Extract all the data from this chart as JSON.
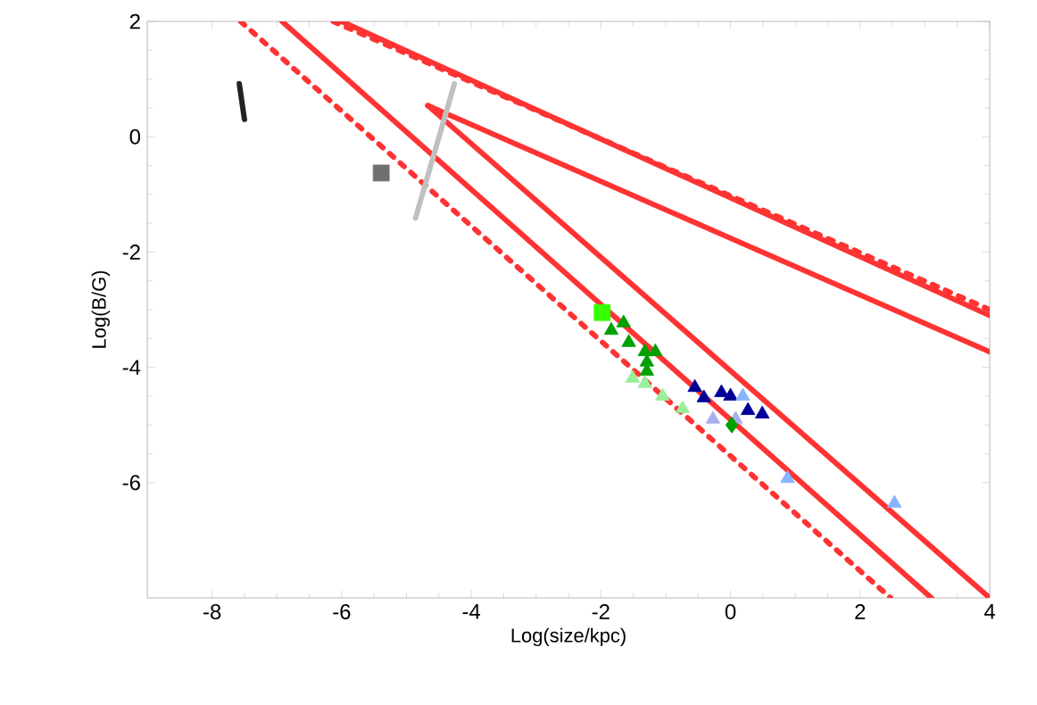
{
  "chart_data": {
    "type": "scatter",
    "xlabel": "Log(size/kpc)",
    "ylabel": "Log(B/G)",
    "xlim": [
      -9,
      4
    ],
    "ylim": [
      -8,
      2
    ],
    "xticks": [
      -8,
      -6,
      -4,
      -2,
      0,
      2,
      4
    ],
    "yticks": [
      -6,
      -4,
      -2,
      0,
      2
    ],
    "grid": false,
    "series": [
      {
        "type": "line",
        "color": "#ff3333",
        "line_style": "dashed",
        "x": [
          -6.13,
          4
        ],
        "values": [
          2,
          -3.0
        ]
      },
      {
        "type": "line",
        "color": "#ff3333",
        "line_style": "solid",
        "x": [
          -6.0,
          4
        ],
        "values": [
          2,
          -3.1
        ]
      },
      {
        "type": "line",
        "color": "#ff3333",
        "line_style": "solid",
        "x": [
          -4.67,
          4
        ],
        "values": [
          0.54,
          -3.73
        ]
      },
      {
        "type": "line",
        "color": "#ff3333",
        "line_style": "solid",
        "x": [
          -4.67,
          4
        ],
        "values": [
          0.54,
          -8
        ]
      },
      {
        "type": "line",
        "color": "#ff3333",
        "line_style": "solid",
        "x": [
          -6.92,
          3.1
        ],
        "values": [
          2,
          -8
        ]
      },
      {
        "type": "line",
        "color": "#ff3333",
        "line_style": "dashed",
        "x": [
          -7.56,
          2.47
        ],
        "values": [
          2,
          -8
        ]
      },
      {
        "type": "line",
        "color": "#c0c0c0",
        "line_style": "solid",
        "x": [
          -4.26,
          -4.86
        ],
        "values": [
          0.92,
          -1.41
        ]
      },
      {
        "type": "line",
        "color": "#222222",
        "line_style": "solid",
        "x": [
          -7.58,
          -7.5
        ],
        "values": [
          0.92,
          0.3
        ]
      },
      {
        "color": "#707070",
        "marker": "square",
        "x": [
          -5.39
        ],
        "values": [
          -0.63
        ]
      },
      {
        "color": "#33ff00",
        "marker": "square",
        "x": [
          -1.98
        ],
        "values": [
          -3.05
        ]
      },
      {
        "color": "#00a000",
        "marker": "triangle",
        "x": [
          -1.84,
          -1.65,
          -1.57,
          -1.32,
          -1.16,
          -1.29,
          -1.29
        ],
        "values": [
          -3.36,
          -3.23,
          -3.57,
          -3.73,
          -3.73,
          -3.91,
          -4.07
        ]
      },
      {
        "color": "#99ee99",
        "marker": "triangle",
        "x": [
          -1.51,
          -1.32,
          -1.05,
          -0.74
        ],
        "values": [
          -4.19,
          -4.28,
          -4.5,
          -4.72
        ]
      },
      {
        "color": "#000099",
        "marker": "triangle",
        "x": [
          -0.55,
          -0.41,
          -0.14,
          0,
          0.27,
          0.49
        ],
        "values": [
          -4.35,
          -4.53,
          -4.44,
          -4.5,
          -4.75,
          -4.81
        ]
      },
      {
        "color": "#aab0ee",
        "marker": "triangle",
        "x": [
          -0.27,
          0.08
        ],
        "values": [
          -4.9,
          -4.9
        ]
      },
      {
        "color": "#88b4ff",
        "marker": "triangle",
        "x": [
          0.19,
          0.88,
          2.53
        ],
        "values": [
          -4.5,
          -5.93,
          -6.36
        ]
      },
      {
        "color": "#00a000",
        "marker": "diamond",
        "x": [
          0.02
        ],
        "values": [
          -5.0
        ]
      }
    ]
  }
}
